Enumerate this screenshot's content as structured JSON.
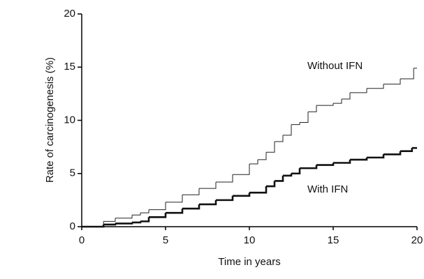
{
  "chart_data": {
    "type": "step",
    "x_label": "Time in years",
    "y_label": "Rate of carcinogenesis (%)",
    "xlim": [
      0,
      20
    ],
    "ylim": [
      0,
      20
    ],
    "xticks": [
      0,
      5,
      10,
      15,
      20
    ],
    "yticks": [
      0,
      5,
      10,
      15,
      20
    ],
    "annotations": [
      "Without IFN",
      "With IFN"
    ],
    "series": [
      {
        "color": "#222222",
        "line_width": 1,
        "x": [
          0,
          1.3,
          2,
          3,
          3.5,
          4,
          5,
          6,
          7,
          8,
          9,
          10,
          10.5,
          11,
          11.5,
          12,
          12.5,
          13,
          13.5,
          14,
          15,
          15.5,
          16,
          17,
          18,
          19,
          19.8,
          20
        ],
        "values": [
          0,
          0.5,
          0.8,
          1.1,
          1.3,
          1.6,
          2.3,
          3.0,
          3.6,
          4.2,
          4.9,
          5.9,
          6.3,
          7.0,
          8.0,
          8.6,
          9.6,
          9.8,
          10.8,
          11.4,
          11.6,
          12.0,
          12.6,
          13.0,
          13.4,
          13.9,
          14.9,
          14.9
        ]
      },
      {
        "color": "#111111",
        "line_width": 2.6,
        "x": [
          0,
          1.3,
          2,
          3,
          3.5,
          4,
          5,
          6,
          7,
          8,
          9,
          10,
          11,
          11.5,
          12,
          12.5,
          13,
          14,
          15,
          16,
          17,
          18,
          19,
          19.7,
          20
        ],
        "values": [
          0,
          0.2,
          0.3,
          0.4,
          0.5,
          0.9,
          1.3,
          1.7,
          2.1,
          2.5,
          2.9,
          3.2,
          3.8,
          4.3,
          4.8,
          5.0,
          5.5,
          5.8,
          6.0,
          6.3,
          6.5,
          6.8,
          7.1,
          7.4,
          7.4
        ]
      }
    ]
  }
}
